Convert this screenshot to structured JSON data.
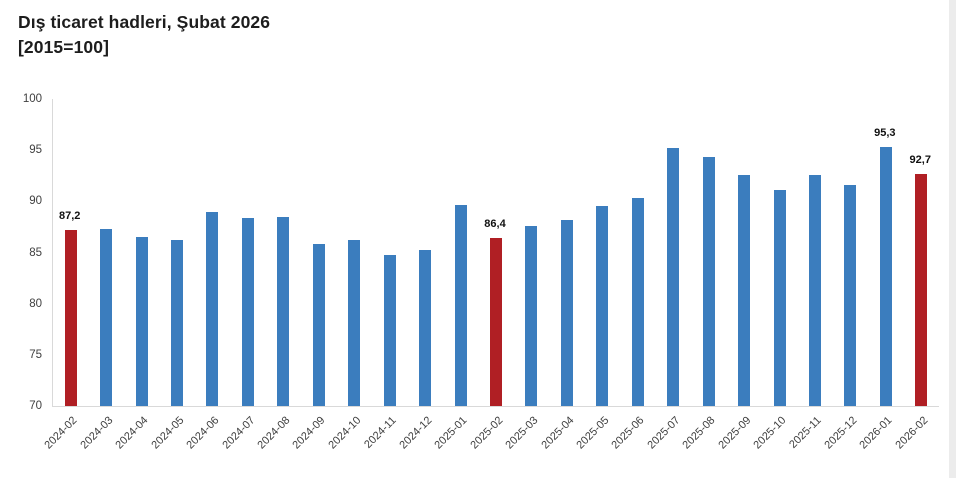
{
  "header": {
    "title": "Dış ticaret hadleri, Şubat 2026",
    "subtitle": "[2015=100]"
  },
  "colors": {
    "bar_default": "#3b7dbe",
    "bar_highlight": "#b01f24",
    "axis_line": "#d9d9d9",
    "tick_text": "#404040",
    "title_text": "#1d1d1d",
    "data_label_text": "#111111"
  },
  "chart_data": {
    "type": "bar",
    "title": "Dış ticaret hadleri, Şubat 2026 [2015=100]",
    "categories": [
      "2024-02",
      "2024-03",
      "2024-04",
      "2024-05",
      "2024-06",
      "2024-07",
      "2024-08",
      "2024-09",
      "2024-10",
      "2024-11",
      "2024-12",
      "2025-01",
      "2025-02",
      "2025-03",
      "2025-04",
      "2025-05",
      "2025-06",
      "2025-07",
      "2025-08",
      "2025-09",
      "2025-10",
      "2025-11",
      "2025-12",
      "2026-01",
      "2026-02"
    ],
    "values": [
      87.2,
      87.3,
      86.5,
      86.2,
      89.0,
      88.4,
      88.5,
      85.8,
      86.2,
      84.8,
      85.2,
      89.6,
      86.4,
      87.6,
      88.2,
      89.5,
      90.3,
      95.2,
      94.3,
      92.6,
      91.1,
      92.6,
      91.6,
      95.3,
      92.7
    ],
    "highlight_indices": [
      0,
      12,
      24
    ],
    "data_labels": {
      "0": "87,2",
      "12": "86,4",
      "23": "95,3",
      "24": "92,7"
    },
    "xlabel": "",
    "ylabel": "",
    "ylim": [
      70,
      100
    ],
    "yticks": [
      100,
      95,
      90,
      85,
      80,
      75,
      70
    ],
    "grid": false,
    "legend": false,
    "decimal_separator": ",",
    "x_tick_rotation_deg": -45
  }
}
